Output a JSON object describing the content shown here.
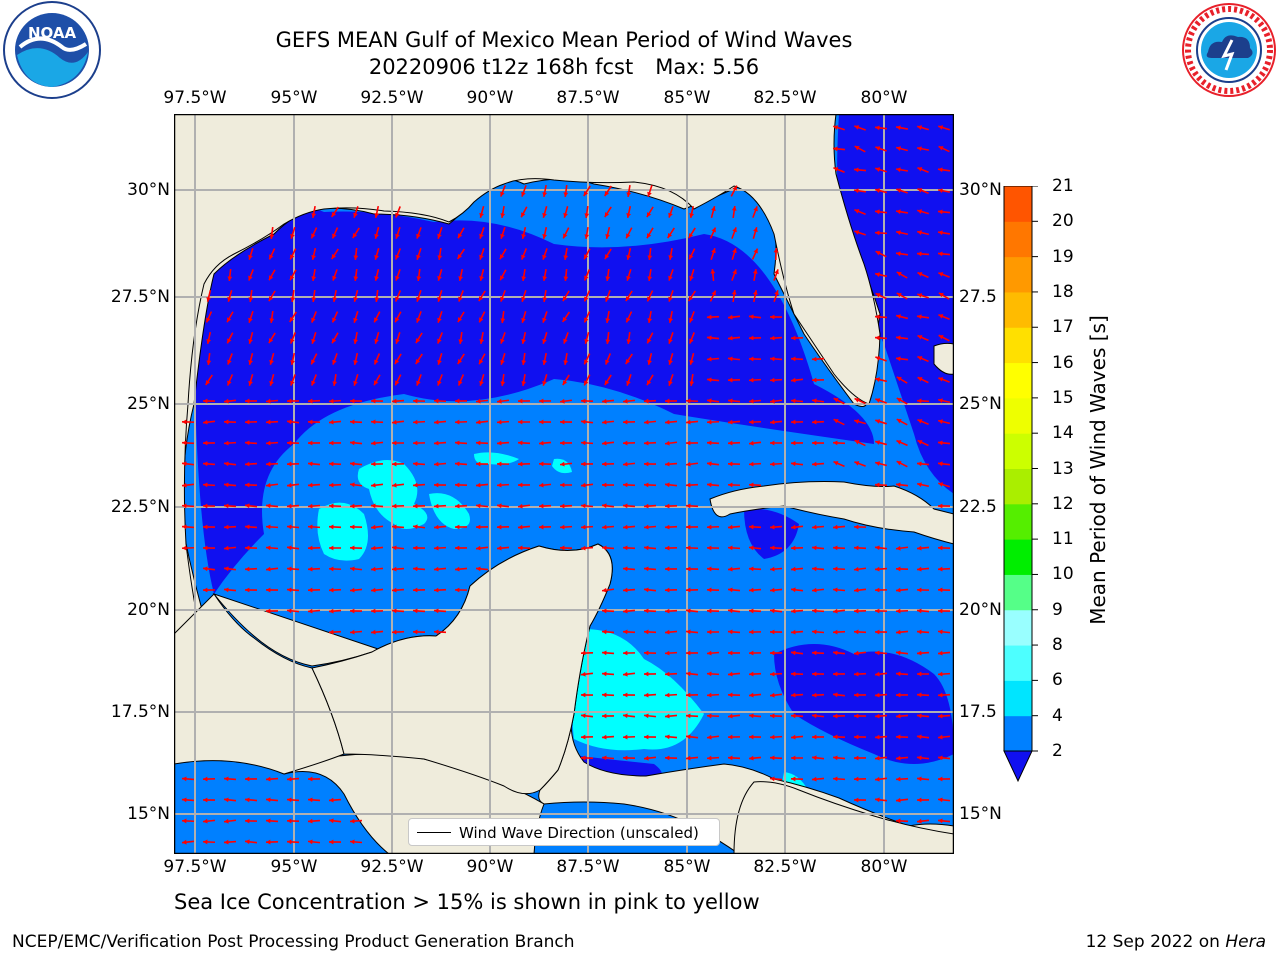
{
  "title": {
    "line1": "GEFS MEAN Gulf of Mexico Mean Period of Wind Waves",
    "line2_date": "20220906 t12z 168h fcst",
    "line2_max": "Max: 5.56"
  },
  "logos": {
    "left": "NOAA",
    "left_ring": "NATIONAL OCEANIC AND ATMOSPHERIC ADMINISTRATION",
    "left_bottom": "U.S. DEPARTMENT OF COMMERCE",
    "right_ring": "NATIONAL WEATHER SERVICE"
  },
  "map": {
    "lon_labels": [
      "97.5°W",
      "95°W",
      "92.5°W",
      "90°W",
      "87.5°W",
      "85°W",
      "82.5°W",
      "80°W"
    ],
    "lat_labels_left": [
      "30°N",
      "27.5°N",
      "25°N",
      "22.5°N",
      "20°N",
      "17.5°N",
      "15°N"
    ],
    "lat_labels_right": [
      "30°N",
      "27.5",
      "25°N",
      "22.5",
      "20°N",
      "17.5",
      "15°N"
    ],
    "land_color": "#efecdc",
    "grid_color": "#b0b0b0",
    "arrow_color": "#ff0000",
    "legend_label": "Wind Wave Direction (unscaled)"
  },
  "colorbar": {
    "label": "Mean Period of Wind Waves [s]",
    "ticks": [
      "21",
      "20",
      "19",
      "18",
      "17",
      "16",
      "15",
      "14",
      "13",
      "12",
      "11",
      "10",
      "9",
      "8",
      "6",
      "4",
      "2"
    ],
    "colors_bottom_to_top": [
      "#0080ff",
      "#00e5ff",
      "#4dffff",
      "#99ffff",
      "#55ff88",
      "#00ee00",
      "#55ee00",
      "#aaee00",
      "#ccff00",
      "#eeff00",
      "#ffff00",
      "#ffe000",
      "#ffbb00",
      "#ff9900",
      "#ff7700",
      "#ff5500",
      "#ff2200",
      "#ff0000"
    ],
    "extend_color": "#1010f0"
  },
  "note": "Sea Ice Concentration > 15% is shown in pink to yellow",
  "footer": {
    "left": "NCEP/EMC/Verification Post Processing Product Generation Branch",
    "date": "12 Sep 2022 on",
    "machine": "Hera"
  }
}
